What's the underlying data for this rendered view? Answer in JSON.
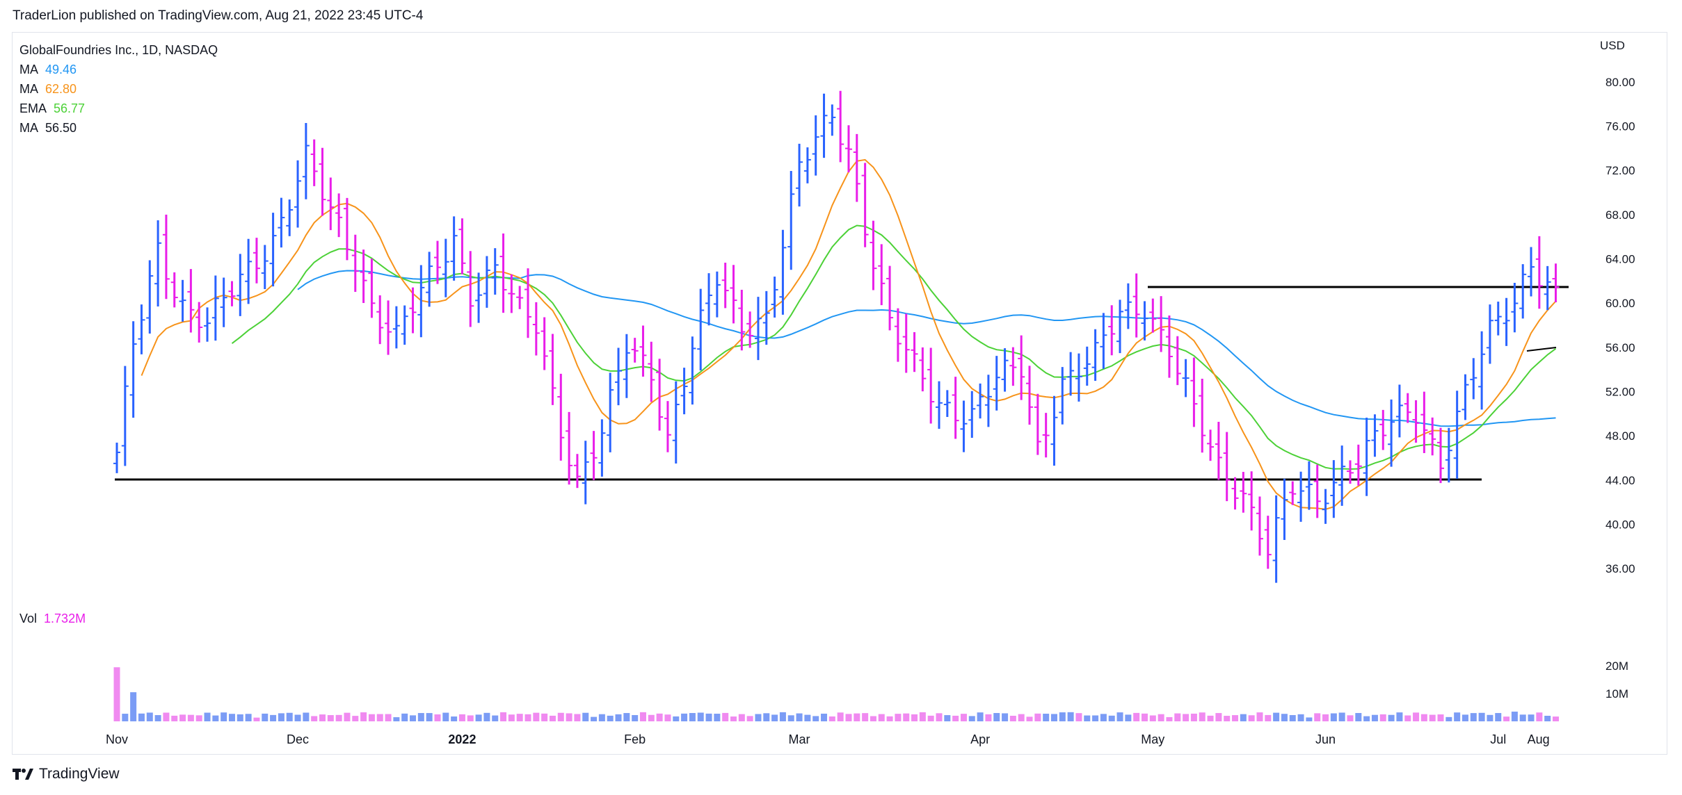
{
  "header": {
    "published": "TraderLion published on TradingView.com, Aug 21, 2022 23:45 UTC-4"
  },
  "footer": {
    "brand": "TradingView"
  },
  "legend": {
    "symbol": "GlobalFoundries Inc., 1D, NASDAQ",
    "indicators": [
      {
        "label": "MA",
        "value": "49.46",
        "color": "#2196f3"
      },
      {
        "label": "MA",
        "value": "62.80",
        "color": "#f7931a"
      },
      {
        "label": "EMA",
        "value": "56.77",
        "color": "#4cd137"
      },
      {
        "label": "MA",
        "value": "56.50",
        "color": "#131722"
      }
    ],
    "volume": {
      "label": "Vol",
      "value": "1.732M",
      "color": "#e91ee9"
    }
  },
  "colors": {
    "up": "#2962ff",
    "down": "#e91ee9",
    "ma50": "#2196f3",
    "ma10": "#f7931a",
    "ema21": "#4cd137",
    "vol_up": "#7b9cf5",
    "vol_down": "#f08af0"
  },
  "chart_data": {
    "type": "bar",
    "currency": "USD",
    "ylim": [
      34,
      82
    ],
    "price_ticks": [
      "80.00",
      "76.00",
      "72.00",
      "68.00",
      "64.00",
      "60.00",
      "56.00",
      "52.00",
      "48.00",
      "44.00",
      "40.00",
      "36.00"
    ],
    "volume_ticks": [
      "20M",
      "10M"
    ],
    "x_labels": [
      "Nov",
      "Dec",
      "2022",
      "Feb",
      "Mar",
      "Apr",
      "May",
      "Jun",
      "Jul",
      "Aug"
    ],
    "anchors": [
      [
        0,
        46
      ],
      [
        2,
        56
      ],
      [
        5,
        65
      ],
      [
        8,
        60
      ],
      [
        11,
        58
      ],
      [
        15,
        62
      ],
      [
        19,
        66
      ],
      [
        23,
        73
      ],
      [
        26,
        68
      ],
      [
        29,
        64
      ],
      [
        31,
        60
      ],
      [
        34,
        57
      ],
      [
        38,
        62
      ],
      [
        41,
        66
      ],
      [
        43,
        61
      ],
      [
        46,
        63
      ],
      [
        49,
        59
      ],
      [
        51,
        58
      ],
      [
        54,
        49
      ],
      [
        56,
        44
      ],
      [
        59,
        48
      ],
      [
        62,
        56
      ],
      [
        65,
        54
      ],
      [
        67,
        48
      ],
      [
        70,
        56
      ],
      [
        73,
        62
      ],
      [
        76,
        58
      ],
      [
        79,
        59
      ],
      [
        83,
        72
      ],
      [
        87,
        77
      ],
      [
        89,
        74
      ],
      [
        92,
        64
      ],
      [
        94,
        58
      ],
      [
        97,
        54
      ],
      [
        100,
        51
      ],
      [
        104,
        50
      ],
      [
        107,
        53
      ],
      [
        110,
        54
      ],
      [
        112,
        47
      ],
      [
        115,
        53
      ],
      [
        119,
        55
      ],
      [
        122,
        59
      ],
      [
        125,
        60
      ],
      [
        128,
        56
      ],
      [
        131,
        50
      ],
      [
        134,
        45
      ],
      [
        137,
        43
      ],
      [
        140,
        38
      ],
      [
        143,
        43
      ],
      [
        146,
        42
      ],
      [
        149,
        45
      ],
      [
        152,
        47
      ],
      [
        155,
        49
      ],
      [
        158,
        50
      ],
      [
        161,
        46
      ],
      [
        164,
        52
      ],
      [
        167,
        57
      ],
      [
        170,
        60
      ],
      [
        172,
        64
      ],
      [
        175,
        61
      ]
    ],
    "vol_spikes": {
      "0": 19.5,
      "2": 10.5,
      "51": 3.1,
      "70": 3.0,
      "107": 3.0,
      "116": 3.3,
      "163": 3.2,
      "170": 3.5,
      "175": 1.732
    }
  }
}
